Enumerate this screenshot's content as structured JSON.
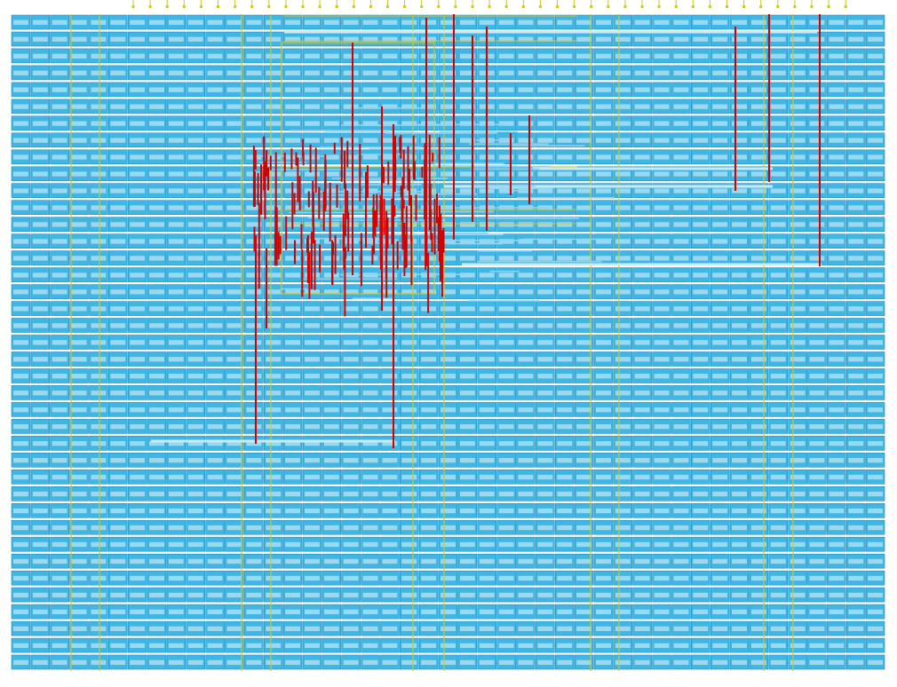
{
  "layout": {
    "kind": "ic-place-and-route",
    "cell_label_text_legible": false,
    "colors": {
      "background": "#ffffff",
      "cell_fill": "#3fb6e3",
      "cell_stroke": "#1f8fbf",
      "cell_text_box": "#e8f6fb",
      "rail": "#c8c832",
      "route_metal1": "#8fd4f0",
      "route_metal2": "#d40000",
      "congestion": "#b8e8a0"
    },
    "congestion_region": "upper-left-center",
    "components": [
      "standard-cell-grid",
      "io-pins",
      "power-rails",
      "signal-routes"
    ]
  }
}
